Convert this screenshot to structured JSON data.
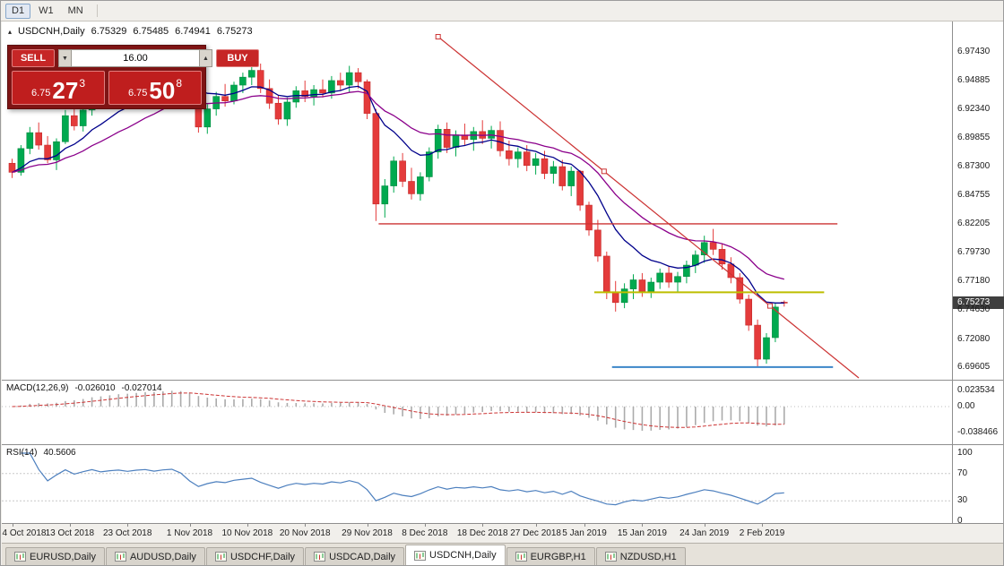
{
  "toolbar": {
    "timeframes": [
      {
        "label": "D1",
        "active": true
      },
      {
        "label": "W1",
        "active": false
      },
      {
        "label": "MN",
        "active": false
      }
    ]
  },
  "chart_title": {
    "symbol_period": "USDCNH,Daily",
    "open": "6.75329",
    "high": "6.75485",
    "low": "6.74941",
    "close": "6.75273"
  },
  "trade_panel": {
    "sell_label": "SELL",
    "buy_label": "BUY",
    "volume": "16.00",
    "volume_down_icon": "▼",
    "volume_up_icon": "▲",
    "sell_price": {
      "small": "6.75",
      "big": "27",
      "sup": "3"
    },
    "buy_price": {
      "small": "6.75",
      "big": "50",
      "sup": "8"
    }
  },
  "colors": {
    "up": "#00A94F",
    "up_stroke": "#008A40",
    "down": "#E43B3B",
    "down_stroke": "#C32B2B",
    "ma_fast": "#00008B",
    "ma_slow": "#8B008B",
    "line_red": "#CC3333",
    "line_yellow": "#BDBE00",
    "line_blue": "#3C86C8",
    "macd_hist": "#ABABAB",
    "macd_signal": "#CC3333",
    "rsi": "#4C7FBE",
    "current_price_bg": "#3F3F3F"
  },
  "chart_data": {
    "type": "candlestick",
    "symbol": "USDCNH",
    "timeframe": "Daily",
    "ylim": [
      6.688,
      6.998
    ],
    "candles": [
      [
        6.876,
        6.88,
        6.863,
        6.868
      ],
      [
        6.868,
        6.892,
        6.865,
        6.889
      ],
      [
        6.889,
        6.908,
        6.884,
        6.903
      ],
      [
        6.903,
        6.912,
        6.888,
        6.892
      ],
      [
        6.892,
        6.9,
        6.876,
        6.879
      ],
      [
        6.879,
        6.898,
        6.87,
        6.895
      ],
      [
        6.895,
        6.923,
        6.893,
        6.918
      ],
      [
        6.918,
        6.929,
        6.905,
        6.909
      ],
      [
        6.909,
        6.926,
        6.904,
        6.923
      ],
      [
        6.923,
        6.942,
        6.918,
        6.938
      ],
      [
        6.938,
        6.948,
        6.927,
        6.932
      ],
      [
        6.932,
        6.944,
        6.925,
        6.941
      ],
      [
        6.941,
        6.952,
        6.933,
        6.947
      ],
      [
        6.947,
        6.956,
        6.939,
        6.943
      ],
      [
        6.943,
        6.958,
        6.94,
        6.954
      ],
      [
        6.954,
        6.964,
        6.947,
        6.96
      ],
      [
        6.96,
        6.968,
        6.95,
        6.955
      ],
      [
        6.955,
        6.97,
        6.948,
        6.966
      ],
      [
        6.966,
        6.9758,
        6.958,
        6.972
      ],
      [
        6.972,
        6.9745,
        6.956,
        6.961
      ],
      [
        6.961,
        6.966,
        6.929,
        6.933
      ],
      [
        6.933,
        6.938,
        6.903,
        6.908
      ],
      [
        6.908,
        6.928,
        6.902,
        6.924
      ],
      [
        6.924,
        6.939,
        6.918,
        6.935
      ],
      [
        6.935,
        6.946,
        6.926,
        6.931
      ],
      [
        6.931,
        6.948,
        6.928,
        6.945
      ],
      [
        6.945,
        6.956,
        6.938,
        6.952
      ],
      [
        6.952,
        6.962,
        6.945,
        6.958
      ],
      [
        6.958,
        6.964,
        6.938,
        6.942
      ],
      [
        6.942,
        6.95,
        6.924,
        6.929
      ],
      [
        6.929,
        6.936,
        6.91,
        6.915
      ],
      [
        6.915,
        6.934,
        6.909,
        6.93
      ],
      [
        6.93,
        6.944,
        6.925,
        6.94
      ],
      [
        6.94,
        6.949,
        6.93,
        6.935
      ],
      [
        6.935,
        6.945,
        6.927,
        6.941
      ],
      [
        6.941,
        6.95,
        6.934,
        6.938
      ],
      [
        6.938,
        6.953,
        6.933,
        6.949
      ],
      [
        6.949,
        6.956,
        6.94,
        6.945
      ],
      [
        6.945,
        6.962,
        6.939,
        6.956
      ],
      [
        6.956,
        6.96,
        6.942,
        6.948
      ],
      [
        6.948,
        6.95,
        6.915,
        6.92
      ],
      [
        6.92,
        6.924,
        6.825,
        6.84
      ],
      [
        6.84,
        6.862,
        6.828,
        6.856
      ],
      [
        6.856,
        6.882,
        6.85,
        6.878
      ],
      [
        6.878,
        6.885,
        6.855,
        6.86
      ],
      [
        6.86,
        6.872,
        6.844,
        6.849
      ],
      [
        6.849,
        6.868,
        6.843,
        6.864
      ],
      [
        6.864,
        6.89,
        6.86,
        6.886
      ],
      [
        6.886,
        6.91,
        6.88,
        6.906
      ],
      [
        6.906,
        6.912,
        6.885,
        6.89
      ],
      [
        6.89,
        6.905,
        6.882,
        6.901
      ],
      [
        6.901,
        6.911,
        6.892,
        6.897
      ],
      [
        6.897,
        6.908,
        6.887,
        6.904
      ],
      [
        6.904,
        6.914,
        6.893,
        6.898
      ],
      [
        6.898,
        6.909,
        6.889,
        6.905
      ],
      [
        6.905,
        6.913,
        6.882,
        6.887
      ],
      [
        6.887,
        6.896,
        6.874,
        6.88
      ],
      [
        6.88,
        6.89,
        6.872,
        6.886
      ],
      [
        6.886,
        6.892,
        6.869,
        6.874
      ],
      [
        6.874,
        6.885,
        6.866,
        6.88
      ],
      [
        6.88,
        6.887,
        6.862,
        6.867
      ],
      [
        6.867,
        6.878,
        6.858,
        6.873
      ],
      [
        6.873,
        6.879,
        6.852,
        6.856
      ],
      [
        6.856,
        6.873,
        6.847,
        6.869
      ],
      [
        6.869,
        6.87,
        6.834,
        6.839
      ],
      [
        6.839,
        6.842,
        6.812,
        6.817
      ],
      [
        6.817,
        6.826,
        6.789,
        6.794
      ],
      [
        6.794,
        6.798,
        6.756,
        6.762
      ],
      [
        6.762,
        6.772,
        6.745,
        6.753
      ],
      [
        6.753,
        6.77,
        6.748,
        6.765
      ],
      [
        6.765,
        6.778,
        6.756,
        6.773
      ],
      [
        6.773,
        6.779,
        6.758,
        6.763
      ],
      [
        6.763,
        6.775,
        6.757,
        6.771
      ],
      [
        6.771,
        6.783,
        6.765,
        6.779
      ],
      [
        6.779,
        6.785,
        6.766,
        6.771
      ],
      [
        6.771,
        6.78,
        6.762,
        6.776
      ],
      [
        6.776,
        6.79,
        6.77,
        6.786
      ],
      [
        6.786,
        6.799,
        6.779,
        6.795
      ],
      [
        6.795,
        6.812,
        6.788,
        6.806
      ],
      [
        6.806,
        6.818,
        6.795,
        6.8
      ],
      [
        6.8,
        6.805,
        6.782,
        6.787
      ],
      [
        6.787,
        6.793,
        6.77,
        6.775
      ],
      [
        6.775,
        6.779,
        6.752,
        6.756
      ],
      [
        6.756,
        6.76,
        6.728,
        6.733
      ],
      [
        6.733,
        6.738,
        6.696,
        6.703
      ],
      [
        6.703,
        6.726,
        6.699,
        6.722
      ],
      [
        6.722,
        6.752,
        6.718,
        6.749
      ],
      [
        6.75329,
        6.75485,
        6.74941,
        6.75273
      ]
    ],
    "moving_averages": [
      {
        "type": "EMA",
        "period": 10,
        "color_key": "ma_fast"
      },
      {
        "type": "EMA",
        "period": 21,
        "color_key": "ma_slow"
      }
    ],
    "objects": {
      "trendline": {
        "color_key": "line_red",
        "i1": 48.0,
        "p1": 6.9877,
        "i2": 85.4,
        "p2": 6.75,
        "ray": true
      },
      "hlines": [
        {
          "name": "resistance-red",
          "color_key": "line_red",
          "price": 6.8225,
          "i1": 41.3,
          "i2": 93.0,
          "w": 1.3
        },
        {
          "name": "pivot-yellow",
          "color_key": "line_yellow",
          "price": 6.762,
          "i1": 65.6,
          "i2": 91.5,
          "w": 2
        },
        {
          "name": "support-blue",
          "color_key": "line_blue",
          "price": 6.696,
          "i1": 67.6,
          "i2": 92.5,
          "w": 2
        }
      ]
    },
    "price_scale": {
      "labels": [
        "6.97430",
        "6.94885",
        "6.92340",
        "6.89855",
        "6.87300",
        "6.84755",
        "6.82205",
        "6.79730",
        "6.77180",
        "6.74630",
        "6.72080",
        "6.69605"
      ],
      "current": "6.75273"
    },
    "x_axis": {
      "labels": [
        {
          "text": "4 Oct 2018",
          "i": 0
        },
        {
          "text": "13 Oct 2018",
          "i": 6.5
        },
        {
          "text": "23 Oct 2018",
          "i": 13
        },
        {
          "text": "1 Nov 2018",
          "i": 20
        },
        {
          "text": "10 Nov 2018",
          "i": 26.5
        },
        {
          "text": "20 Nov 2018",
          "i": 33
        },
        {
          "text": "29 Nov 2018",
          "i": 40
        },
        {
          "text": "8 Dec 2018",
          "i": 46.5
        },
        {
          "text": "18 Dec 2018",
          "i": 53
        },
        {
          "text": "27 Dec 2018",
          "i": 59
        },
        {
          "text": "5 Jan 2019",
          "i": 64.5
        },
        {
          "text": "15 Jan 2019",
          "i": 71
        },
        {
          "text": "24 Jan 2019",
          "i": 78
        },
        {
          "text": "2 Feb 2019",
          "i": 84.5
        }
      ]
    },
    "indicators": {
      "macd": {
        "label": "MACD(12,26,9)",
        "fast": 12,
        "slow": 26,
        "signal": 9,
        "value_main": "-0.026010",
        "value_signal": "-0.027014",
        "scale_labels": [
          "0.023534",
          "0.00",
          "-0.038466"
        ]
      },
      "rsi": {
        "label": "RSI(14)",
        "period": 14,
        "value": "40.5606",
        "levels": [
          "100",
          "70",
          "30",
          "0"
        ],
        "level_lines": [
          70,
          30
        ]
      }
    }
  },
  "tabs": [
    {
      "label": "EURUSD,Daily",
      "active": false
    },
    {
      "label": "AUDUSD,Daily",
      "active": false
    },
    {
      "label": "USDCHF,Daily",
      "active": false
    },
    {
      "label": "USDCAD,Daily",
      "active": false
    },
    {
      "label": "USDCNH,Daily",
      "active": true
    },
    {
      "label": "EURGBP,H1",
      "active": false
    },
    {
      "label": "NZDUSD,H1",
      "active": false
    }
  ]
}
